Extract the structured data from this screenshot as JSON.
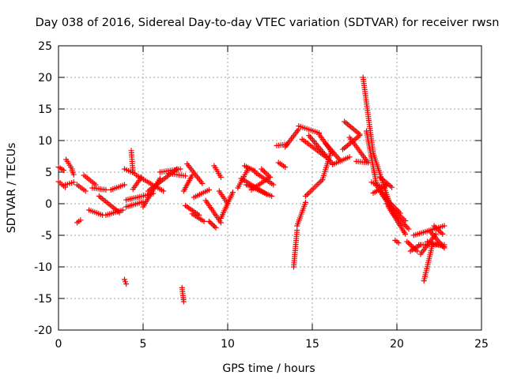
{
  "chart_data": {
    "type": "scatter",
    "title": "Day 038 of 2016, Sidereal Day-to-day VTEC variation (SDTVAR) for receiver rwsn",
    "xlabel": "GPS time / hours",
    "ylabel": "SDTVAR / TECUs",
    "xlim": [
      0,
      25
    ],
    "ylim": [
      -20,
      25
    ],
    "x_ticks": [
      0,
      5,
      10,
      15,
      20,
      25
    ],
    "y_ticks": [
      -20,
      -15,
      -10,
      -5,
      0,
      5,
      10,
      15,
      20,
      25
    ],
    "x_tick_labels": [
      "0",
      "5",
      "10",
      "15",
      "20",
      "25"
    ],
    "y_tick_labels": [
      "-20",
      "-15",
      "-10",
      "-5",
      "0",
      "5",
      "10",
      "15",
      "20",
      "25"
    ],
    "grid": true,
    "marker": "+",
    "color": "#ff0000",
    "tracks": [
      {
        "x": [
          0,
          0.3
        ],
        "y": [
          5.8,
          5.3
        ]
      },
      {
        "x": [
          0,
          0.4
        ],
        "y": [
          3.5,
          2.6
        ]
      },
      {
        "x": [
          0.4,
          0.9
        ],
        "y": [
          3.0,
          3.4
        ]
      },
      {
        "x": [
          0.45,
          0.8
        ],
        "y": [
          7.0,
          5.5
        ]
      },
      {
        "x": [
          0.8,
          0.9
        ],
        "y": [
          5.2,
          4.6
        ]
      },
      {
        "x": [
          1.1,
          1.3
        ],
        "y": [
          -3.0,
          -2.6
        ]
      },
      {
        "x": [
          1.1,
          1.6
        ],
        "y": [
          3.0,
          2.0
        ]
      },
      {
        "x": [
          1.5,
          2.2
        ],
        "y": [
          4.5,
          3.0
        ]
      },
      {
        "x": [
          1.8,
          2.6
        ],
        "y": [
          -1.0,
          -1.8
        ]
      },
      {
        "x": [
          2.0,
          2.8
        ],
        "y": [
          2.5,
          2.2
        ]
      },
      {
        "x": [
          2.4,
          3.6
        ],
        "y": [
          1.2,
          -1.4
        ]
      },
      {
        "x": [
          3.1,
          3.9
        ],
        "y": [
          2.2,
          3.0
        ]
      },
      {
        "x": [
          2.8,
          3.8
        ],
        "y": [
          -1.8,
          -1.0
        ]
      },
      {
        "x": [
          3.9,
          4.0
        ],
        "y": [
          -12.0,
          -12.7
        ]
      },
      {
        "x": [
          4.0,
          5.0
        ],
        "y": [
          -0.5,
          0.3
        ]
      },
      {
        "x": [
          3.9,
          4.5
        ],
        "y": [
          5.5,
          4.8
        ]
      },
      {
        "x": [
          4.3,
          4.4
        ],
        "y": [
          8.4,
          5.0
        ]
      },
      {
        "x": [
          4.4,
          4.9
        ],
        "y": [
          2.3,
          4.2
        ]
      },
      {
        "x": [
          4.0,
          5.6
        ],
        "y": [
          0.6,
          1.6
        ]
      },
      {
        "x": [
          4.6,
          6.2
        ],
        "y": [
          4.5,
          2.0
        ]
      },
      {
        "x": [
          5.0,
          6.0
        ],
        "y": [
          -0.5,
          4.0
        ]
      },
      {
        "x": [
          5.3,
          7.0
        ],
        "y": [
          2.0,
          5.5
        ]
      },
      {
        "x": [
          6.0,
          7.2
        ],
        "y": [
          5.0,
          5.5
        ]
      },
      {
        "x": [
          6.5,
          7.5
        ],
        "y": [
          4.8,
          4.4
        ]
      },
      {
        "x": [
          7.3,
          7.4
        ],
        "y": [
          -13.3,
          -15.5
        ]
      },
      {
        "x": [
          7.4,
          7.9
        ],
        "y": [
          2.0,
          4.5
        ]
      },
      {
        "x": [
          7.6,
          8.5
        ],
        "y": [
          6.3,
          3.2
        ]
      },
      {
        "x": [
          7.5,
          8.3
        ],
        "y": [
          -0.3,
          -1.8
        ]
      },
      {
        "x": [
          7.9,
          8.6
        ],
        "y": [
          -1.6,
          -2.8
        ]
      },
      {
        "x": [
          8.0,
          8.9
        ],
        "y": [
          1.0,
          2.2
        ]
      },
      {
        "x": [
          8.7,
          9.6
        ],
        "y": [
          0.5,
          -3.0
        ]
      },
      {
        "x": [
          8.9,
          9.3
        ],
        "y": [
          -2.8,
          -3.8
        ]
      },
      {
        "x": [
          9.2,
          9.6
        ],
        "y": [
          6.0,
          4.2
        ]
      },
      {
        "x": [
          9.5,
          10.0
        ],
        "y": [
          2.0,
          0.0
        ]
      },
      {
        "x": [
          9.6,
          10.3
        ],
        "y": [
          -2.3,
          1.8
        ]
      },
      {
        "x": [
          10.6,
          11.2
        ],
        "y": [
          2.5,
          5.5
        ]
      },
      {
        "x": [
          11.0,
          11.6
        ],
        "y": [
          6.0,
          5.2
        ]
      },
      {
        "x": [
          10.8,
          12.3
        ],
        "y": [
          4.0,
          1.5
        ]
      },
      {
        "x": [
          11.1,
          12.6
        ],
        "y": [
          3.0,
          1.2
        ]
      },
      {
        "x": [
          11.4,
          12.5
        ],
        "y": [
          2.2,
          4.2
        ]
      },
      {
        "x": [
          11.6,
          12.7
        ],
        "y": [
          5.0,
          3.0
        ]
      },
      {
        "x": [
          12.0,
          12.5
        ],
        "y": [
          5.5,
          4.2
        ]
      },
      {
        "x": [
          13.0,
          13.4
        ],
        "y": [
          6.5,
          5.8
        ]
      },
      {
        "x": [
          12.9,
          13.5
        ],
        "y": [
          9.2,
          9.4
        ]
      },
      {
        "x": [
          13.9,
          14.1
        ],
        "y": [
          -10.0,
          -4.2
        ]
      },
      {
        "x": [
          14.1,
          14.6
        ],
        "y": [
          -3.5,
          0.2
        ]
      },
      {
        "x": [
          14.6,
          15.6
        ],
        "y": [
          1.2,
          3.8
        ]
      },
      {
        "x": [
          15.6,
          16.1
        ],
        "y": [
          3.8,
          8.2
        ]
      },
      {
        "x": [
          13.4,
          14.2
        ],
        "y": [
          9.0,
          11.8
        ]
      },
      {
        "x": [
          14.2,
          15.4
        ],
        "y": [
          12.3,
          11.2
        ]
      },
      {
        "x": [
          15.4,
          16.2
        ],
        "y": [
          11.0,
          8.0
        ]
      },
      {
        "x": [
          14.4,
          15.8
        ],
        "y": [
          10.2,
          7.4
        ]
      },
      {
        "x": [
          14.8,
          16.2
        ],
        "y": [
          10.8,
          6.3
        ]
      },
      {
        "x": [
          15.8,
          16.6
        ],
        "y": [
          9.5,
          7.0
        ]
      },
      {
        "x": [
          16.2,
          17.2
        ],
        "y": [
          6.2,
          7.4
        ]
      },
      {
        "x": [
          16.8,
          17.8
        ],
        "y": [
          8.6,
          10.8
        ]
      },
      {
        "x": [
          16.9,
          17.8
        ],
        "y": [
          13.0,
          11.0
        ]
      },
      {
        "x": [
          17.2,
          18.3
        ],
        "y": [
          10.5,
          6.5
        ]
      },
      {
        "x": [
          17.6,
          18.3
        ],
        "y": [
          6.7,
          6.5
        ]
      },
      {
        "x": [
          18.0,
          18.6
        ],
        "y": [
          20.0,
          8.0
        ]
      },
      {
        "x": [
          18.6,
          19.7
        ],
        "y": [
          8.0,
          -1.0
        ]
      },
      {
        "x": [
          18.2,
          18.8
        ],
        "y": [
          11.5,
          3.0
        ]
      },
      {
        "x": [
          18.5,
          19.2
        ],
        "y": [
          3.4,
          2.6
        ]
      },
      {
        "x": [
          18.8,
          19.5
        ],
        "y": [
          2.8,
          0.6
        ]
      },
      {
        "x": [
          18.6,
          19.4
        ],
        "y": [
          1.7,
          2.9
        ]
      },
      {
        "x": [
          19.0,
          19.8
        ],
        "y": [
          2.0,
          -1.3
        ]
      },
      {
        "x": [
          19.2,
          20.2
        ],
        "y": [
          1.2,
          -1.5
        ]
      },
      {
        "x": [
          19.4,
          20.5
        ],
        "y": [
          0.0,
          -2.7
        ]
      },
      {
        "x": [
          19.5,
          20.5
        ],
        "y": [
          -0.5,
          -4.8
        ]
      },
      {
        "x": [
          19.7,
          20.7
        ],
        "y": [
          -1.3,
          -4.0
        ]
      },
      {
        "x": [
          19.0,
          19.7
        ],
        "y": [
          4.2,
          2.6
        ]
      },
      {
        "x": [
          19.9,
          20.1
        ],
        "y": [
          -5.8,
          -6.2
        ]
      },
      {
        "x": [
          20.6,
          21.2
        ],
        "y": [
          -6.0,
          -7.5
        ]
      },
      {
        "x": [
          20.8,
          21.4
        ],
        "y": [
          -7.5,
          -6.5
        ]
      },
      {
        "x": [
          21.0,
          22.8
        ],
        "y": [
          -5.0,
          -3.5
        ]
      },
      {
        "x": [
          21.3,
          22.8
        ],
        "y": [
          -6.5,
          -6.5
        ]
      },
      {
        "x": [
          21.4,
          22.3
        ],
        "y": [
          -8.0,
          -4.8
        ]
      },
      {
        "x": [
          21.6,
          22.1
        ],
        "y": [
          -12.2,
          -6.5
        ]
      },
      {
        "x": [
          21.8,
          22.8
        ],
        "y": [
          -6.0,
          -6.8
        ]
      },
      {
        "x": [
          22.0,
          22.8
        ],
        "y": [
          -4.5,
          -7.0
        ]
      },
      {
        "x": [
          22.2,
          22.7
        ],
        "y": [
          -3.5,
          -4.8
        ]
      }
    ]
  }
}
